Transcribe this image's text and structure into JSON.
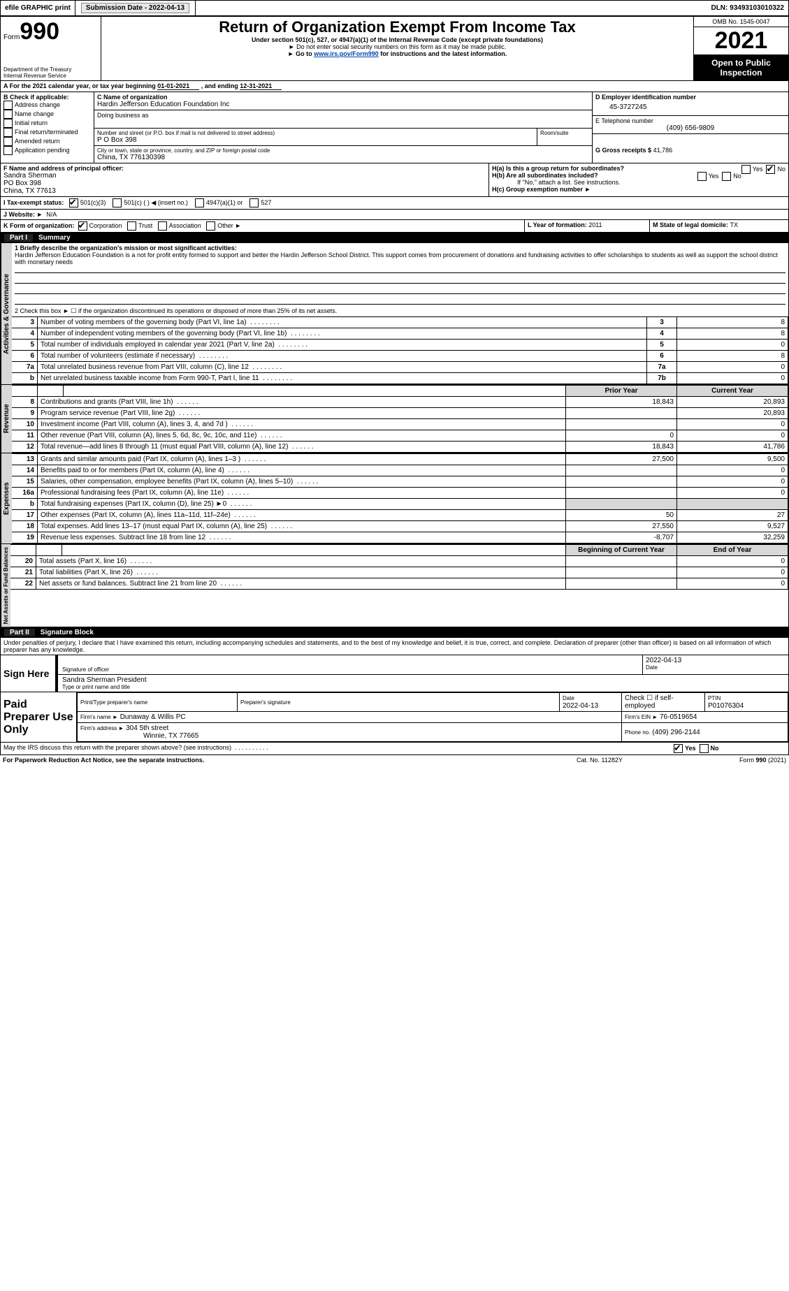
{
  "top": {
    "efile_label": "efile GRAPHIC print",
    "submission_label": "Submission Date - 2022-04-13",
    "dln_label": "DLN: 93493103010322"
  },
  "header": {
    "form_label": "Form",
    "form_number": "990",
    "title": "Return of Organization Exempt From Income Tax",
    "subtitle1": "Under section 501(c), 527, or 4947(a)(1) of the Internal Revenue Code (except private foundations)",
    "subtitle2": "Do not enter social security numbers on this form as it may be made public.",
    "subtitle3_prefix": "Go to ",
    "subtitle3_link": "www.irs.gov/Form990",
    "subtitle3_suffix": " for instructions and the latest information.",
    "dept": "Department of the Treasury",
    "irs": "Internal Revenue Service",
    "omb": "OMB No. 1545-0047",
    "year": "2021",
    "inspection": "Open to Public Inspection"
  },
  "period": {
    "a_label": "A For the 2021 calendar year, or tax year beginning ",
    "begin": "01-01-2021",
    "mid": " , and ending ",
    "end": "12-31-2021"
  },
  "boxB": {
    "label": "B Check if applicable:",
    "items": [
      "Address change",
      "Name change",
      "Initial return",
      "Final return/terminated",
      "Amended return",
      "Application pending"
    ]
  },
  "boxC": {
    "name_label": "C Name of organization",
    "name": "Hardin Jefferson Education Foundation Inc",
    "dba_label": "Doing business as",
    "street_label": "Number and street (or P.O. box if mail is not delivered to street address)",
    "room_label": "Room/suite",
    "street": "P O Box 398",
    "city_label": "City or town, state or province, country, and ZIP or foreign postal code",
    "city": "China, TX  776130398"
  },
  "boxD": {
    "label": "D Employer identification number",
    "value": "45-3727245"
  },
  "boxE": {
    "label": "E Telephone number",
    "value": "(409) 656-9809"
  },
  "boxG": {
    "label": "G Gross receipts $",
    "value": "41,786"
  },
  "boxF": {
    "label": "F Name and address of principal officer:",
    "name": "Sandra Sherman",
    "line2": "PO Box 398",
    "line3": "China, TX  77613"
  },
  "boxH": {
    "h_a": "H(a)  Is this a group return for subordinates?",
    "h_b": "H(b)  Are all subordinates included?",
    "h_b_note": "If \"No,\" attach a list. See instructions.",
    "h_c": "H(c)  Group exemption number ►",
    "yes": "Yes",
    "no": "No"
  },
  "boxI": {
    "label": "I  Tax-exempt status:",
    "opts": [
      "501(c)(3)",
      "501(c) (   ) ◀ (insert no.)",
      "4947(a)(1) or",
      "527"
    ]
  },
  "boxJ": {
    "label": "J  Website: ►",
    "value": "N/A"
  },
  "boxK": {
    "label": "K Form of organization:",
    "opts": [
      "Corporation",
      "Trust",
      "Association",
      "Other ►"
    ]
  },
  "boxL": {
    "label": "L Year of formation: ",
    "value": "2011"
  },
  "boxM": {
    "label": "M State of legal domicile: ",
    "value": "TX"
  },
  "part1": {
    "num": "Part I",
    "title": "Summary"
  },
  "summary": {
    "q1_label": "1  Briefly describe the organization's mission or most significant activities:",
    "q1_text": "Hardin Jefferson Education Foundation is a not for profit entity formed to support and better the Hardin Jefferson School District. This support comes from procurement of donations and fundraising activities to offer scholarships to students as well as support the school district with monetary needs",
    "q2": "2  Check this box ► ☐ if the organization discontinued its operations or disposed of more than 25% of its net assets.",
    "lines_gov": [
      {
        "n": "3",
        "t": "Number of voting members of the governing body (Part VI, line 1a)",
        "box": "3",
        "v": "8"
      },
      {
        "n": "4",
        "t": "Number of independent voting members of the governing body (Part VI, line 1b)",
        "box": "4",
        "v": "8"
      },
      {
        "n": "5",
        "t": "Total number of individuals employed in calendar year 2021 (Part V, line 2a)",
        "box": "5",
        "v": "0"
      },
      {
        "n": "6",
        "t": "Total number of volunteers (estimate if necessary)",
        "box": "6",
        "v": "8"
      },
      {
        "n": "7a",
        "t": "Total unrelated business revenue from Part VIII, column (C), line 12",
        "box": "7a",
        "v": "0"
      },
      {
        "n": "b",
        "t": "Net unrelated business taxable income from Form 990-T, Part I, line 11",
        "box": "7b",
        "v": "0"
      }
    ],
    "col_prior": "Prior Year",
    "col_current": "Current Year",
    "rev": [
      {
        "n": "8",
        "t": "Contributions and grants (Part VIII, line 1h)",
        "p": "18,843",
        "c": "20,893"
      },
      {
        "n": "9",
        "t": "Program service revenue (Part VIII, line 2g)",
        "p": "",
        "c": "20,893"
      },
      {
        "n": "10",
        "t": "Investment income (Part VIII, column (A), lines 3, 4, and 7d )",
        "p": "",
        "c": "0"
      },
      {
        "n": "11",
        "t": "Other revenue (Part VIII, column (A), lines 5, 6d, 8c, 9c, 10c, and 11e)",
        "p": "0",
        "c": "0"
      },
      {
        "n": "12",
        "t": "Total revenue—add lines 8 through 11 (must equal Part VIII, column (A), line 12)",
        "p": "18,843",
        "c": "41,786"
      }
    ],
    "exp": [
      {
        "n": "13",
        "t": "Grants and similar amounts paid (Part IX, column (A), lines 1–3 )",
        "p": "27,500",
        "c": "9,500"
      },
      {
        "n": "14",
        "t": "Benefits paid to or for members (Part IX, column (A), line 4)",
        "p": "",
        "c": "0"
      },
      {
        "n": "15",
        "t": "Salaries, other compensation, employee benefits (Part IX, column (A), lines 5–10)",
        "p": "",
        "c": "0"
      },
      {
        "n": "16a",
        "t": "Professional fundraising fees (Part IX, column (A), line 11e)",
        "p": "",
        "c": "0"
      },
      {
        "n": "b",
        "t": "Total fundraising expenses (Part IX, column (D), line 25) ►0",
        "p": "",
        "c": ""
      },
      {
        "n": "17",
        "t": "Other expenses (Part IX, column (A), lines 11a–11d, 11f–24e)",
        "p": "50",
        "c": "27"
      },
      {
        "n": "18",
        "t": "Total expenses. Add lines 13–17 (must equal Part IX, column (A), line 25)",
        "p": "27,550",
        "c": "9,527"
      },
      {
        "n": "19",
        "t": "Revenue less expenses. Subtract line 18 from line 12",
        "p": "-8,707",
        "c": "32,259"
      }
    ],
    "col_begin": "Beginning of Current Year",
    "col_end": "End of Year",
    "net": [
      {
        "n": "20",
        "t": "Total assets (Part X, line 16)",
        "p": "",
        "c": "0"
      },
      {
        "n": "21",
        "t": "Total liabilities (Part X, line 26)",
        "p": "",
        "c": "0"
      },
      {
        "n": "22",
        "t": "Net assets or fund balances. Subtract line 21 from line 20",
        "p": "",
        "c": "0"
      }
    ]
  },
  "vlabels": {
    "gov": "Activities & Governance",
    "rev": "Revenue",
    "exp": "Expenses",
    "net": "Net Assets or Fund Balances"
  },
  "part2": {
    "num": "Part II",
    "title": "Signature Block"
  },
  "sig": {
    "perjury": "Under penalties of perjury, I declare that I have examined this return, including accompanying schedules and statements, and to the best of my knowledge and belief, it is true, correct, and complete. Declaration of preparer (other than officer) is based on all information of which preparer has any knowledge.",
    "sign_here": "Sign Here",
    "sig_officer": "Signature of officer",
    "date_label": "Date",
    "sig_date": "2022-04-13",
    "name_title": "Sandra Sherman  President",
    "type_label": "Type or print name and title",
    "paid": "Paid Preparer Use Only",
    "print_label": "Print/Type preparer's name",
    "prep_sig_label": "Preparer's signature",
    "prep_date": "2022-04-13",
    "check_self": "Check ☐ if self-employed",
    "ptin_label": "PTIN",
    "ptin": "P01076304",
    "firm_name_label": "Firm's name    ►",
    "firm_name": "Dunaway & Willis PC",
    "firm_ein_label": "Firm's EIN ►",
    "firm_ein": "76-0519654",
    "firm_addr_label": "Firm's address ►",
    "firm_addr1": "304 5th street",
    "firm_addr2": "Winnie, TX  77665",
    "phone_label": "Phone no.",
    "phone": "(409) 296-2144",
    "may_irs": "May the IRS discuss this return with the preparer shown above? (see instructions)",
    "yes": "Yes",
    "no": "No"
  },
  "footer": {
    "pra": "For Paperwork Reduction Act Notice, see the separate instructions.",
    "cat": "Cat. No. 11282Y",
    "form": "Form 990 (2021)"
  }
}
